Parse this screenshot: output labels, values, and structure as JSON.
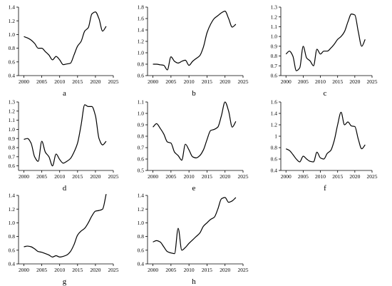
{
  "chart_data": [
    {
      "type": "line",
      "panel_label": "a",
      "x": [
        2000,
        2001,
        2002,
        2003,
        2004,
        2005,
        2006,
        2007,
        2008,
        2009,
        2010,
        2011,
        2012,
        2013,
        2014,
        2015,
        2016,
        2017,
        2018,
        2019,
        2020,
        2021,
        2022,
        2023
      ],
      "y": [
        0.97,
        0.95,
        0.92,
        0.87,
        0.8,
        0.8,
        0.75,
        0.7,
        0.63,
        0.68,
        0.63,
        0.56,
        0.57,
        0.58,
        0.7,
        0.83,
        0.9,
        1.05,
        1.1,
        1.3,
        1.33,
        1.23,
        1.05,
        1.12
      ],
      "xlim": [
        1998.5,
        2025
      ],
      "ylim": [
        0.4,
        1.4
      ],
      "xticks": [
        2000,
        2005,
        2010,
        2015,
        2020,
        2025
      ],
      "yticks": [
        0.4,
        0.6,
        0.8,
        1.0,
        1.2,
        1.4
      ],
      "yticklabels": [
        "0.4",
        "0.6",
        "0.8",
        "1.0",
        "1.2",
        "1.4"
      ]
    },
    {
      "type": "line",
      "panel_label": "b",
      "x": [
        2000,
        2001,
        2002,
        2003,
        2004,
        2005,
        2006,
        2007,
        2008,
        2009,
        2010,
        2011,
        2012,
        2013,
        2014,
        2015,
        2016,
        2017,
        2018,
        2019,
        2020,
        2021,
        2022,
        2023
      ],
      "y": [
        0.8,
        0.8,
        0.79,
        0.78,
        0.7,
        0.93,
        0.85,
        0.82,
        0.85,
        0.87,
        0.78,
        0.85,
        0.9,
        0.95,
        1.1,
        1.35,
        1.5,
        1.6,
        1.65,
        1.7,
        1.73,
        1.6,
        1.45,
        1.5
      ],
      "xlim": [
        1998.5,
        2025
      ],
      "ylim": [
        0.6,
        1.8
      ],
      "xticks": [
        2000,
        2005,
        2010,
        2015,
        2020,
        2025
      ],
      "yticks": [
        0.6,
        0.8,
        1.0,
        1.2,
        1.4,
        1.6,
        1.8
      ],
      "yticklabels": [
        "0.6",
        "0.8",
        "1.0",
        "1.2",
        "1.4",
        "1.6",
        "1.8"
      ]
    },
    {
      "type": "line",
      "panel_label": "c",
      "x": [
        2000,
        2001,
        2002,
        2003,
        2004,
        2005,
        2006,
        2007,
        2008,
        2009,
        2010,
        2011,
        2012,
        2013,
        2014,
        2015,
        2016,
        2017,
        2018,
        2019,
        2020,
        2021,
        2022,
        2023
      ],
      "y": [
        0.82,
        0.85,
        0.8,
        0.65,
        0.68,
        0.9,
        0.78,
        0.75,
        0.7,
        0.87,
        0.82,
        0.85,
        0.85,
        0.88,
        0.92,
        0.97,
        1.0,
        1.05,
        1.15,
        1.23,
        1.22,
        1.05,
        0.9,
        0.97
      ],
      "xlim": [
        1998.5,
        2025
      ],
      "ylim": [
        0.6,
        1.3
      ],
      "xticks": [
        2000,
        2005,
        2010,
        2015,
        2020,
        2025
      ],
      "yticks": [
        0.6,
        0.7,
        0.8,
        0.9,
        1.0,
        1.1,
        1.2,
        1.3
      ],
      "yticklabels": [
        "0.6",
        "0.7",
        "0.8",
        "0.9",
        "1.0",
        "1.1",
        "1.2",
        "1.3"
      ]
    },
    {
      "type": "line",
      "panel_label": "d",
      "x": [
        2000,
        2001,
        2002,
        2003,
        2004,
        2005,
        2006,
        2007,
        2008,
        2009,
        2010,
        2011,
        2012,
        2013,
        2014,
        2015,
        2016,
        2017,
        2018,
        2019,
        2020,
        2021,
        2022,
        2023
      ],
      "y": [
        0.89,
        0.9,
        0.85,
        0.7,
        0.65,
        0.87,
        0.75,
        0.7,
        0.6,
        0.73,
        0.67,
        0.63,
        0.65,
        0.68,
        0.75,
        0.85,
        1.05,
        1.27,
        1.25,
        1.25,
        1.15,
        0.9,
        0.83,
        0.87
      ],
      "xlim": [
        1998.5,
        2025
      ],
      "ylim": [
        0.55,
        1.3
      ],
      "xticks": [
        2000,
        2005,
        2010,
        2015,
        2020,
        2025
      ],
      "yticks": [
        0.6,
        0.7,
        0.8,
        0.9,
        1.0,
        1.1,
        1.2,
        1.3
      ],
      "yticklabels": [
        "0.6",
        "0.7",
        "0.8",
        "0.9",
        "1.0",
        "1.1",
        "1.2",
        "1.3"
      ]
    },
    {
      "type": "line",
      "panel_label": "e",
      "x": [
        2000,
        2001,
        2002,
        2003,
        2004,
        2005,
        2006,
        2007,
        2008,
        2009,
        2010,
        2011,
        2012,
        2013,
        2014,
        2015,
        2016,
        2017,
        2018,
        2019,
        2020,
        2021,
        2022,
        2023
      ],
      "y": [
        0.88,
        0.91,
        0.87,
        0.82,
        0.75,
        0.74,
        0.66,
        0.63,
        0.59,
        0.73,
        0.68,
        0.62,
        0.61,
        0.63,
        0.68,
        0.77,
        0.85,
        0.86,
        0.88,
        0.98,
        1.1,
        1.02,
        0.88,
        0.93
      ],
      "xlim": [
        1998.5,
        2025
      ],
      "ylim": [
        0.5,
        1.1
      ],
      "xticks": [
        2000,
        2005,
        2010,
        2015,
        2020,
        2025
      ],
      "yticks": [
        0.5,
        0.6,
        0.7,
        0.8,
        0.9,
        1.0,
        1.1
      ],
      "yticklabels": [
        "0.5",
        "0.6",
        "0.7",
        "0.8",
        "0.9",
        "1.0",
        "1.1"
      ]
    },
    {
      "type": "line",
      "panel_label": "f",
      "x": [
        2000,
        2001,
        2002,
        2003,
        2004,
        2005,
        2006,
        2007,
        2008,
        2009,
        2010,
        2011,
        2012,
        2013,
        2014,
        2015,
        2016,
        2017,
        2018,
        2019,
        2020,
        2021,
        2022,
        2023
      ],
      "y": [
        0.78,
        0.75,
        0.68,
        0.6,
        0.55,
        0.65,
        0.6,
        0.56,
        0.55,
        0.72,
        0.62,
        0.6,
        0.7,
        0.75,
        0.92,
        1.2,
        1.42,
        1.2,
        1.25,
        1.18,
        1.17,
        0.95,
        0.78,
        0.85
      ],
      "xlim": [
        1998.5,
        2025
      ],
      "ylim": [
        0.4,
        1.6
      ],
      "xticks": [
        2000,
        2005,
        2010,
        2015,
        2020,
        2025
      ],
      "yticks": [
        0.4,
        0.6,
        0.8,
        1.0,
        1.2,
        1.4,
        1.6
      ],
      "yticklabels": [
        "0.4",
        "0.6",
        "0.8",
        "1",
        "1.2",
        "1.4",
        "1.6"
      ]
    },
    {
      "type": "line",
      "panel_label": "g",
      "x": [
        2000,
        2001,
        2002,
        2003,
        2004,
        2005,
        2006,
        2007,
        2008,
        2009,
        2010,
        2011,
        2012,
        2013,
        2014,
        2015,
        2016,
        2017,
        2018,
        2019,
        2020,
        2021,
        2022,
        2023
      ],
      "y": [
        0.65,
        0.66,
        0.65,
        0.62,
        0.58,
        0.57,
        0.55,
        0.53,
        0.5,
        0.52,
        0.5,
        0.51,
        0.53,
        0.58,
        0.68,
        0.82,
        0.88,
        0.92,
        1.0,
        1.1,
        1.17,
        1.18,
        1.2,
        1.42
      ],
      "xlim": [
        1998.5,
        2025
      ],
      "ylim": [
        0.4,
        1.4
      ],
      "xticks": [
        2000,
        2005,
        2010,
        2015,
        2020,
        2025
      ],
      "yticks": [
        0.4,
        0.6,
        0.8,
        1.0,
        1.2,
        1.4
      ],
      "yticklabels": [
        "0.4",
        "0.6",
        "0.8",
        "1.0",
        "1.2",
        "1.4"
      ]
    },
    {
      "type": "line",
      "panel_label": "h",
      "x": [
        2000,
        2001,
        2002,
        2003,
        2004,
        2005,
        2006,
        2007,
        2008,
        2009,
        2010,
        2011,
        2012,
        2013,
        2014,
        2015,
        2016,
        2017,
        2018,
        2019,
        2020,
        2021,
        2022,
        2023
      ],
      "y": [
        0.72,
        0.74,
        0.72,
        0.65,
        0.58,
        0.56,
        0.55,
        0.92,
        0.6,
        0.64,
        0.7,
        0.75,
        0.8,
        0.85,
        0.95,
        1.0,
        1.05,
        1.08,
        1.2,
        1.35,
        1.37,
        1.3,
        1.32,
        1.37
      ],
      "xlim": [
        1998.5,
        2025
      ],
      "ylim": [
        0.4,
        1.4
      ],
      "xticks": [
        2000,
        2005,
        2010,
        2015,
        2020,
        2025
      ],
      "yticks": [
        0.4,
        0.6,
        0.8,
        1.0,
        1.2,
        1.4
      ],
      "yticklabels": [
        "0.4",
        "0.6",
        "0.8",
        "1.0",
        "1.2",
        "1.4"
      ]
    }
  ]
}
